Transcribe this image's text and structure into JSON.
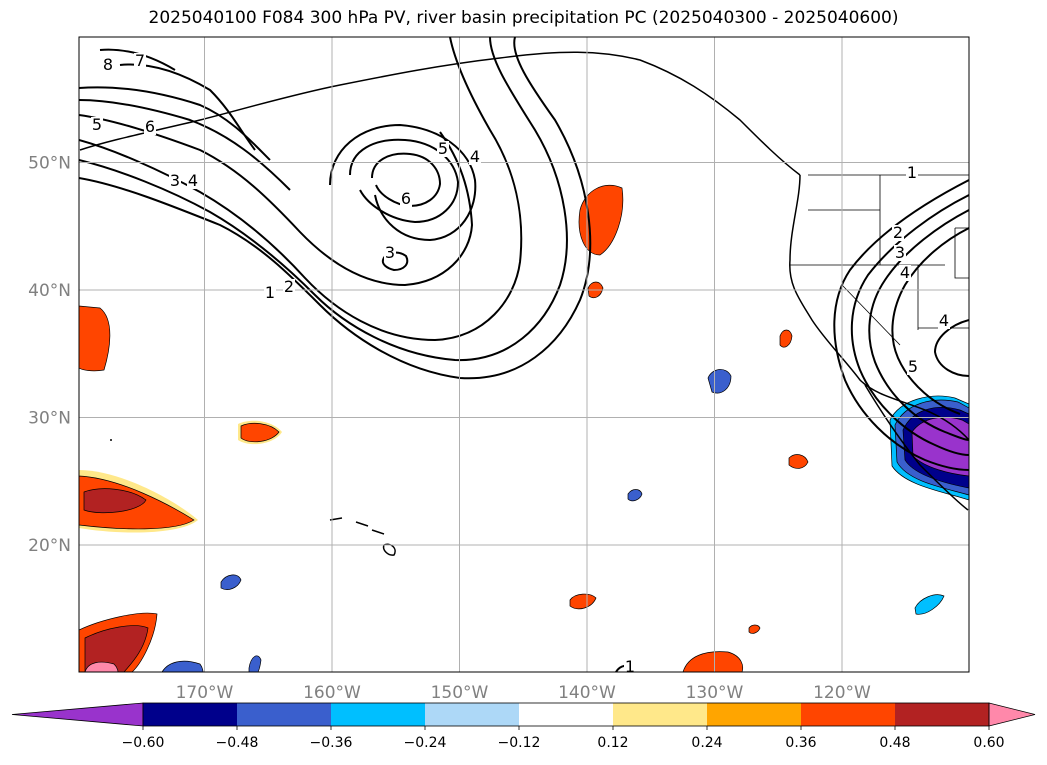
{
  "title": "2025040100 F084 300 hPa PV, river basin precipitation PC (2025040300 - 2025040600)",
  "map": {
    "lon_ticks": [
      {
        "value": -170,
        "label": "170°W"
      },
      {
        "value": -160,
        "label": "160°W"
      },
      {
        "value": -150,
        "label": "150°W"
      },
      {
        "value": -140,
        "label": "140°W"
      },
      {
        "value": -130,
        "label": "130°W"
      },
      {
        "value": -120,
        "label": "120°W"
      }
    ],
    "lat_ticks": [
      {
        "value": 20,
        "label": "20°N"
      },
      {
        "value": 30,
        "label": "30°N"
      },
      {
        "value": 40,
        "label": "40°N"
      },
      {
        "value": 50,
        "label": "50°N"
      }
    ],
    "grid": true,
    "contour_labels": [
      "8",
      "7",
      "5",
      "6",
      "3",
      "4",
      "2",
      "1",
      "5",
      "4",
      "6",
      "3",
      "2",
      "3",
      "4",
      "4",
      "5",
      "1",
      "1"
    ]
  },
  "colorbar": {
    "colors": [
      "#9933cc",
      "#00008b",
      "#3a5fcd",
      "#00bfff",
      "#add8f7",
      "#ffffff",
      "#ffe88a",
      "#ffa500",
      "#ff4500",
      "#b22222",
      "#ff88aa"
    ],
    "tick_labels": [
      "−0.60",
      "−0.48",
      "−0.36",
      "−0.24",
      "−0.12",
      "0.12",
      "0.24",
      "0.36",
      "0.48",
      "0.60"
    ],
    "extend": "both"
  }
}
